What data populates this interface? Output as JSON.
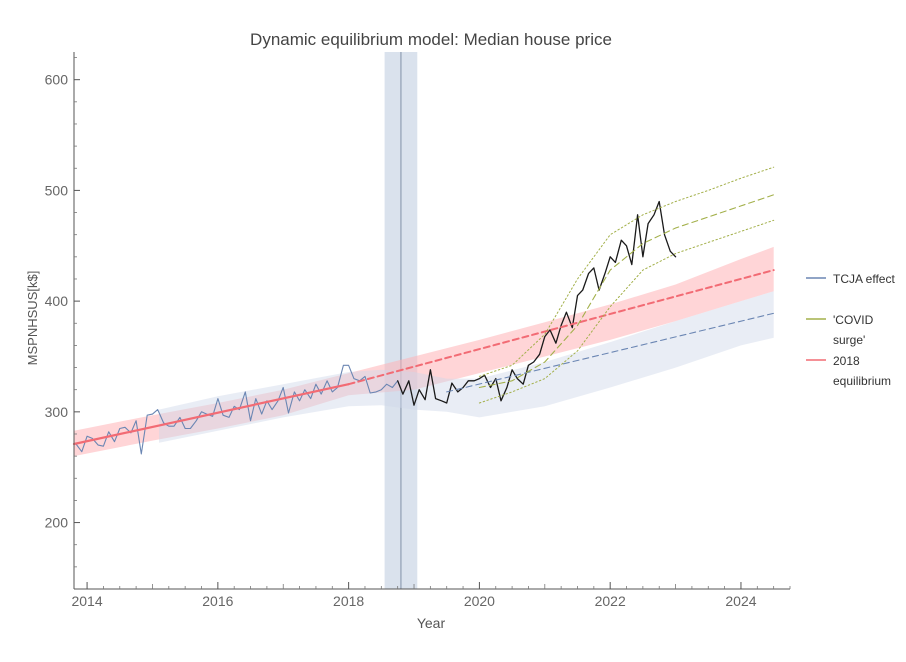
{
  "chart_data": {
    "type": "line",
    "title": "Dynamic equilibrium model: Median house price",
    "xlabel": "Year",
    "ylabel": "MSPNHSUS[k$]",
    "xlim": [
      2013.8,
      2024.75
    ],
    "ylim": [
      140,
      625
    ],
    "x_ticks": [
      2014,
      2016,
      2018,
      2020,
      2022,
      2024
    ],
    "y_ticks": [
      200,
      300,
      400,
      500,
      600
    ],
    "grid": false,
    "legend_position": "right",
    "legend": [
      {
        "key": "tcja",
        "label_lines": [
          "TCJA effect"
        ],
        "color": "#6b86b3",
        "style": "solid"
      },
      {
        "key": "covid",
        "label_lines": [
          "'COVID",
          "surge'"
        ],
        "color": "#a3b04a",
        "style": "solid"
      },
      {
        "key": "eq2018",
        "label_lines": [
          "2018",
          "equilibrium"
        ],
        "color": "#f26b74",
        "style": "solid"
      }
    ],
    "shaded_event_band": {
      "x_start": 2018.55,
      "x_end": 2019.05,
      "center_x": 2018.8,
      "color": "#c6d2e3"
    },
    "series": [
      {
        "key": "data_before",
        "color": "#6b86b3",
        "style": "solid",
        "x": [
          2013.83,
          2013.92,
          2014.0,
          2014.08,
          2014.17,
          2014.25,
          2014.33,
          2014.42,
          2014.5,
          2014.58,
          2014.67,
          2014.75,
          2014.83,
          2014.92,
          2015.0,
          2015.08,
          2015.17,
          2015.25,
          2015.33,
          2015.42,
          2015.5,
          2015.58,
          2015.67,
          2015.75,
          2015.83,
          2015.92,
          2016.0,
          2016.08,
          2016.17,
          2016.25,
          2016.33,
          2016.42,
          2016.5,
          2016.58,
          2016.67,
          2016.75,
          2016.83,
          2016.92,
          2017.0,
          2017.08,
          2017.17,
          2017.25,
          2017.33,
          2017.42,
          2017.5,
          2017.58,
          2017.67,
          2017.75,
          2017.83,
          2017.92,
          2018.0,
          2018.08,
          2018.17,
          2018.25,
          2018.33,
          2018.42,
          2018.5,
          2018.58,
          2018.67,
          2018.75
        ],
        "y": [
          271,
          264,
          278,
          276,
          270,
          269,
          282,
          273,
          285,
          286,
          281,
          292,
          262,
          297,
          298,
          302,
          290,
          287,
          287,
          295,
          285,
          285,
          292,
          300,
          298,
          296,
          312,
          297,
          295,
          305,
          302,
          318,
          292,
          312,
          298,
          310,
          302,
          310,
          322,
          299,
          318,
          310,
          320,
          312,
          325,
          316,
          328,
          318,
          322,
          342,
          342,
          330,
          328,
          332,
          317,
          318,
          320,
          325,
          322,
          328
        ]
      },
      {
        "key": "data_after",
        "color": "#1a1a1a",
        "style": "solid",
        "x": [
          2018.75,
          2018.83,
          2018.92,
          2019.0,
          2019.08,
          2019.17,
          2019.25,
          2019.33,
          2019.42,
          2019.5,
          2019.58,
          2019.67,
          2019.75,
          2019.83,
          2019.92,
          2020.0,
          2020.08,
          2020.17,
          2020.25,
          2020.33,
          2020.42,
          2020.5,
          2020.58,
          2020.67,
          2020.75,
          2020.83,
          2020.92,
          2021.0,
          2021.08,
          2021.17,
          2021.25,
          2021.33,
          2021.42,
          2021.5,
          2021.58,
          2021.67,
          2021.75,
          2021.83,
          2021.92,
          2022.0,
          2022.08,
          2022.17,
          2022.25,
          2022.33,
          2022.42,
          2022.5,
          2022.58,
          2022.67,
          2022.75,
          2022.83,
          2022.92,
          2023.0
        ],
        "y": [
          328,
          316,
          328,
          306,
          320,
          311,
          338,
          312,
          310,
          308,
          326,
          318,
          322,
          328,
          328,
          330,
          333,
          322,
          330,
          310,
          322,
          338,
          330,
          325,
          342,
          345,
          352,
          368,
          374,
          362,
          378,
          390,
          376,
          405,
          410,
          425,
          430,
          410,
          425,
          440,
          435,
          455,
          450,
          433,
          478,
          440,
          470,
          478,
          490,
          460,
          445,
          440
        ]
      },
      {
        "key": "eq2018_fit",
        "color": "#f26b74",
        "style": "solid",
        "x": [
          2013.8,
          2018.0
        ],
        "y": [
          271,
          325
        ]
      },
      {
        "key": "eq2018_projection",
        "color": "#f26b74",
        "style": "dashed",
        "x": [
          2018.0,
          2024.5
        ],
        "y": [
          325,
          428
        ]
      },
      {
        "key": "tcja_projection",
        "color": "#6b86b3",
        "style": "dashed",
        "x": [
          2019.5,
          2024.5
        ],
        "y": [
          318,
          389
        ]
      },
      {
        "key": "covid_center",
        "color": "#a3b04a",
        "style": "dashed",
        "x": [
          2020.0,
          2020.5,
          2021.0,
          2021.5,
          2022.0,
          2022.5,
          2023.0,
          2023.5,
          2024.0,
          2024.5
        ],
        "y": [
          322,
          328,
          345,
          378,
          428,
          452,
          466,
          476,
          486,
          496
        ]
      },
      {
        "key": "covid_upper",
        "color": "#a3b04a",
        "style": "dotted",
        "x": [
          2020.0,
          2020.5,
          2021.0,
          2021.5,
          2022.0,
          2022.5,
          2023.0,
          2023.5,
          2024.0,
          2024.5
        ],
        "y": [
          332,
          342,
          370,
          420,
          460,
          478,
          490,
          500,
          511,
          521
        ]
      },
      {
        "key": "covid_lower",
        "color": "#a3b04a",
        "style": "dotted",
        "x": [
          2020.0,
          2020.5,
          2021.0,
          2021.5,
          2022.0,
          2022.5,
          2023.0,
          2023.5,
          2024.0,
          2024.5
        ],
        "y": [
          308,
          318,
          330,
          355,
          395,
          428,
          443,
          453,
          463,
          473
        ]
      }
    ],
    "bands": [
      {
        "key": "eq2018_band",
        "color": "#ffb2b6",
        "opacity": 0.55,
        "x": [
          2013.8,
          2015,
          2016,
          2017,
          2018,
          2019,
          2020,
          2021,
          2022,
          2023,
          2024,
          2024.5
        ],
        "upper": [
          283,
          297,
          308,
          320,
          335,
          350,
          365,
          381,
          397,
          415,
          438,
          449
        ],
        "lower": [
          260,
          274,
          285,
          297,
          315,
          320,
          335,
          350,
          365,
          382,
          400,
          409
        ]
      },
      {
        "key": "tcja_band",
        "color": "#cfd8e8",
        "opacity": 0.45,
        "x": [
          2015.1,
          2016,
          2017,
          2018,
          2018.5,
          2019,
          2019.5,
          2020,
          2021,
          2022,
          2023,
          2024,
          2024.5
        ],
        "upper": [
          302,
          314,
          325,
          336,
          338,
          336,
          330,
          330,
          345,
          363,
          382,
          400,
          409
        ],
        "lower": [
          272,
          283,
          295,
          305,
          306,
          302,
          300,
          295,
          305,
          322,
          340,
          360,
          367
        ]
      }
    ]
  }
}
